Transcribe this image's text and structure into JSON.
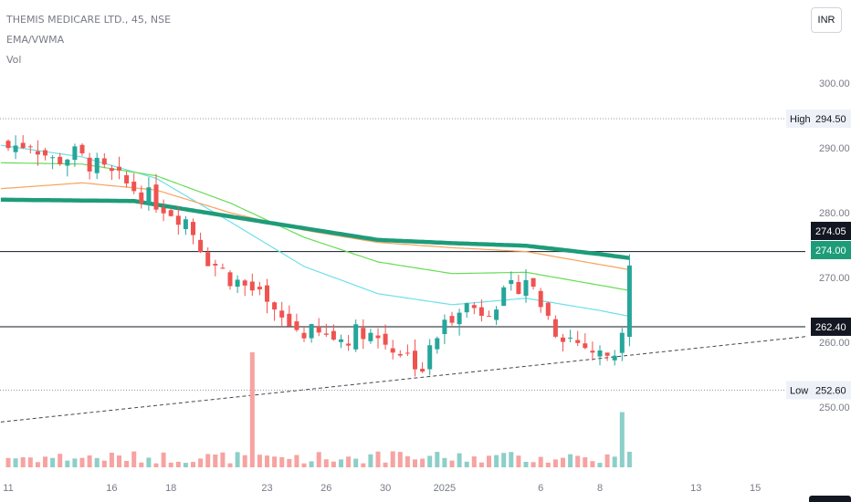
{
  "header": {
    "symbol_line": "THEMIS MEDICARE LTD., 45, NSE",
    "indicator_line": "EMA/VWMA",
    "volume_line": "Vol"
  },
  "currency_button": "INR",
  "colors": {
    "up": "#26a69a",
    "down": "#ef5350",
    "vol_up": "#8ccfc8",
    "vol_down": "#f6a3a1",
    "ema_thick": "#1e9c79",
    "ema_orange": "#f7a35c",
    "ema_green": "#66dd55",
    "ema_cyan": "#6ee0e8",
    "level_line": "#131722",
    "trend_line": "#434651"
  },
  "chart_data": {
    "type": "candlestick",
    "ylim": [
      246,
      303
    ],
    "y_ticks": [
      "300.00",
      "290.00",
      "280.00",
      "270.00",
      "260.00",
      "250.00"
    ],
    "y_tick_values": [
      300,
      290,
      280,
      270,
      260,
      250
    ],
    "x_ticks": [
      "11",
      "16",
      "18",
      "23",
      "26",
      "30",
      "2025",
      "6",
      "8",
      "13",
      "15"
    ],
    "x_tick_index": [
      0,
      14,
      22,
      35,
      43,
      51,
      59,
      72,
      80,
      93,
      101
    ],
    "candle_count": 85,
    "price_labels": [
      {
        "label": "High",
        "value": "294.50",
        "y": 294.5
      },
      {
        "label": "",
        "value": "274.05",
        "y": 274.05
      },
      {
        "label": "",
        "value": "274.00",
        "y": 274.0
      },
      {
        "label": "",
        "value": "262.40",
        "y": 262.4
      },
      {
        "label": "Low",
        "value": "252.60",
        "y": 252.6
      }
    ],
    "horizontal_levels": [
      274.0,
      262.4
    ],
    "trend_line": {
      "from": [
        -1,
        247.7
      ],
      "to": [
        108,
        260.9
      ]
    },
    "close_path": [
      [
        0,
        290
      ],
      [
        3,
        291
      ],
      [
        6,
        288
      ],
      [
        9,
        289
      ],
      [
        12,
        287
      ],
      [
        15,
        285
      ],
      [
        18,
        283
      ],
      [
        21,
        281
      ],
      [
        24,
        279
      ],
      [
        27,
        273
      ],
      [
        30,
        270
      ],
      [
        33,
        268
      ],
      [
        36,
        264
      ],
      [
        39,
        262
      ],
      [
        42,
        261
      ],
      [
        45,
        260.5
      ],
      [
        48,
        262
      ],
      [
        51,
        260
      ],
      [
        54,
        258
      ],
      [
        56,
        256
      ],
      [
        58,
        261
      ],
      [
        61,
        266
      ],
      [
        64,
        265
      ],
      [
        67,
        267
      ],
      [
        70,
        270
      ],
      [
        72,
        266
      ],
      [
        74,
        262
      ],
      [
        77,
        260
      ],
      [
        80,
        258
      ],
      [
        82,
        258.5
      ],
      [
        83,
        263
      ],
      [
        84,
        271
      ]
    ],
    "ema_thick": [
      [
        -1,
        282
      ],
      [
        17,
        281.8
      ],
      [
        35,
        278.5
      ],
      [
        50,
        275.8
      ],
      [
        60,
        275.3
      ],
      [
        70,
        274.9
      ],
      [
        80,
        273.6
      ],
      [
        84,
        273
      ]
    ],
    "ema_orange": [
      [
        -1,
        283.7
      ],
      [
        10,
        284.6
      ],
      [
        20,
        283.5
      ],
      [
        30,
        280
      ],
      [
        40,
        277.3
      ],
      [
        50,
        275.4
      ],
      [
        60,
        274.6
      ],
      [
        70,
        274
      ],
      [
        80,
        272
      ],
      [
        84,
        271.2
      ]
    ],
    "ema_green": [
      [
        -1,
        287.7
      ],
      [
        10,
        287.5
      ],
      [
        20,
        285.7
      ],
      [
        30,
        281.5
      ],
      [
        40,
        276.2
      ],
      [
        50,
        272.4
      ],
      [
        60,
        270.6
      ],
      [
        70,
        270.8
      ],
      [
        80,
        268.8
      ],
      [
        84,
        268
      ]
    ],
    "ema_cyan": [
      [
        -1,
        290.4
      ],
      [
        10,
        288.6
      ],
      [
        20,
        285.3
      ],
      [
        30,
        278.6
      ],
      [
        40,
        271.7
      ],
      [
        50,
        267.5
      ],
      [
        60,
        265.8
      ],
      [
        70,
        266.8
      ],
      [
        80,
        264.9
      ],
      [
        84,
        264
      ]
    ],
    "volume_spikes": [
      {
        "index": 33,
        "value": 1.0
      },
      {
        "index": 83,
        "value": 0.48
      }
    ]
  }
}
